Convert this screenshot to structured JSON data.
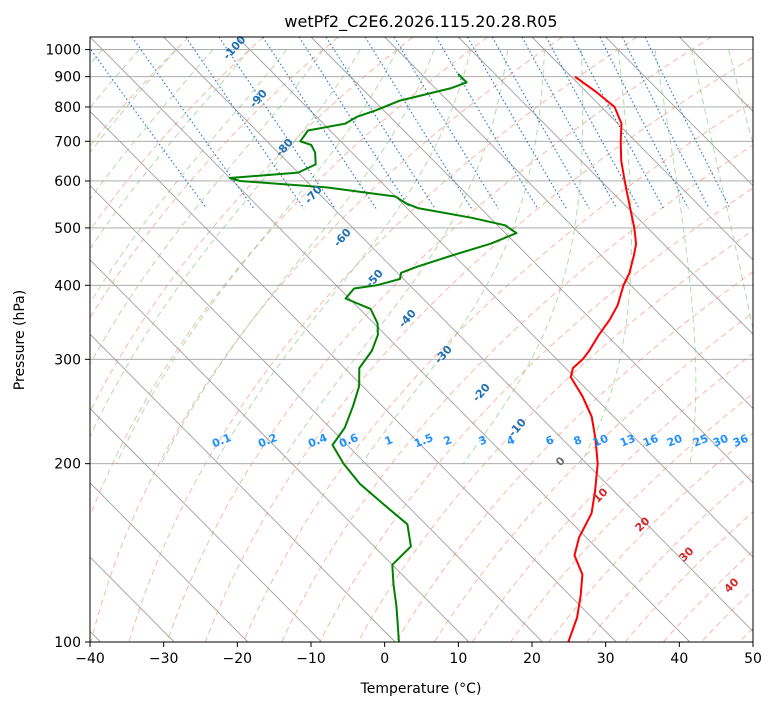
{
  "chart_data": {
    "type": "line",
    "diagram": "skew-T log-P",
    "title": "wetPf2_C2E6.2026.115.20.28.R05",
    "xlabel": "Temperature (°C)",
    "ylabel": "Pressure (hPa)",
    "xlim": [
      -40,
      50
    ],
    "ylim": [
      1050,
      100
    ],
    "y_scale": "log",
    "x_ticks": [
      -40,
      -30,
      -20,
      -10,
      0,
      10,
      20,
      30,
      40,
      50
    ],
    "y_ticks": [
      1000,
      900,
      800,
      700,
      600,
      500,
      400,
      300,
      200,
      100
    ],
    "grid": true,
    "series": [
      {
        "key": "temperature",
        "color": "#ff0000",
        "points": [
          [
            900,
            20.5
          ],
          [
            850,
            21.3
          ],
          [
            800,
            21.8
          ],
          [
            750,
            20.5
          ],
          [
            700,
            18.0
          ],
          [
            650,
            15.5
          ],
          [
            600,
            13.2
          ],
          [
            550,
            10.8
          ],
          [
            500,
            8.2
          ],
          [
            470,
            6.3
          ],
          [
            450,
            4.5
          ],
          [
            420,
            1.5
          ],
          [
            400,
            -1.0
          ],
          [
            370,
            -4.5
          ],
          [
            350,
            -7.5
          ],
          [
            330,
            -11.0
          ],
          [
            310,
            -14.5
          ],
          [
            300,
            -16.5
          ],
          [
            290,
            -19.0
          ],
          [
            280,
            -20.5
          ],
          [
            260,
            -21.5
          ],
          [
            240,
            -23.0
          ],
          [
            220,
            -25.5
          ],
          [
            200,
            -28.5
          ],
          [
            180,
            -32.5
          ],
          [
            165,
            -36.0
          ],
          [
            150,
            -41.0
          ],
          [
            140,
            -44.0
          ],
          [
            130,
            -45.5
          ],
          [
            120,
            -48.5
          ],
          [
            110,
            -52.0
          ],
          [
            100,
            -56.5
          ]
        ]
      },
      {
        "key": "dewpoint",
        "color": "#008000",
        "points": [
          [
            910,
            5.0
          ],
          [
            880,
            5.0
          ],
          [
            860,
            2.0
          ],
          [
            820,
            -6.5
          ],
          [
            790,
            -11.0
          ],
          [
            770,
            -14.5
          ],
          [
            750,
            -17.0
          ],
          [
            730,
            -23.0
          ],
          [
            700,
            -25.5
          ],
          [
            690,
            -24.5
          ],
          [
            670,
            -25.0
          ],
          [
            640,
            -26.5
          ],
          [
            620,
            -30.0
          ],
          [
            607,
            -40.0
          ],
          [
            600,
            -39.0
          ],
          [
            585,
            -28.0
          ],
          [
            565,
            -20.0
          ],
          [
            550,
            -19.5
          ],
          [
            540,
            -18.5
          ],
          [
            520,
            -12.5
          ],
          [
            505,
            -9.0
          ],
          [
            490,
            -8.5
          ],
          [
            470,
            -13.5
          ],
          [
            450,
            -20.0
          ],
          [
            430,
            -26.5
          ],
          [
            420,
            -29.5
          ],
          [
            410,
            -30.5
          ],
          [
            400,
            -34.5
          ],
          [
            395,
            -38.0
          ],
          [
            380,
            -40.5
          ],
          [
            365,
            -38.5
          ],
          [
            345,
            -39.5
          ],
          [
            330,
            -41.0
          ],
          [
            310,
            -44.0
          ],
          [
            290,
            -48.0
          ],
          [
            270,
            -50.5
          ],
          [
            250,
            -54.0
          ],
          [
            230,
            -58.0
          ],
          [
            215,
            -62.0
          ],
          [
            200,
            -63.0
          ],
          [
            185,
            -63.5
          ],
          [
            170,
            -63.0
          ],
          [
            158,
            -62.5
          ],
          [
            145,
            -65.0
          ],
          [
            135,
            -70.0
          ],
          [
            125,
            -72.5
          ],
          [
            115,
            -75.0
          ],
          [
            108,
            -77.0
          ],
          [
            100,
            -79.5
          ]
        ]
      }
    ],
    "dry_adiabat_labels": [
      "-100",
      "-90",
      "-80",
      "-70",
      "-60",
      "-50",
      "-40",
      "-30",
      "-20",
      "-10"
    ],
    "mixing_ratio_labels": [
      "0.1",
      "0.2",
      "0.4",
      "0.6",
      "1",
      "1.5",
      "2",
      "3",
      "4",
      "6",
      "8",
      "10",
      "13",
      "16",
      "20",
      "25",
      "30",
      "36"
    ],
    "moist_adiabat_labels": [
      "0",
      "10",
      "20",
      "30",
      "40"
    ],
    "colors": {
      "isotherm": "#a0a0a0",
      "isobar": "#a0a0a0",
      "dry_adiabat": "#f08060",
      "moist_adiabat": "#80c080",
      "mixing_ratio": "#1f77d0",
      "dry_label": "#1f6fb4",
      "mixing_label": "#1e90ff",
      "moist_label": "#d62728",
      "zero_label": "#707070"
    }
  }
}
